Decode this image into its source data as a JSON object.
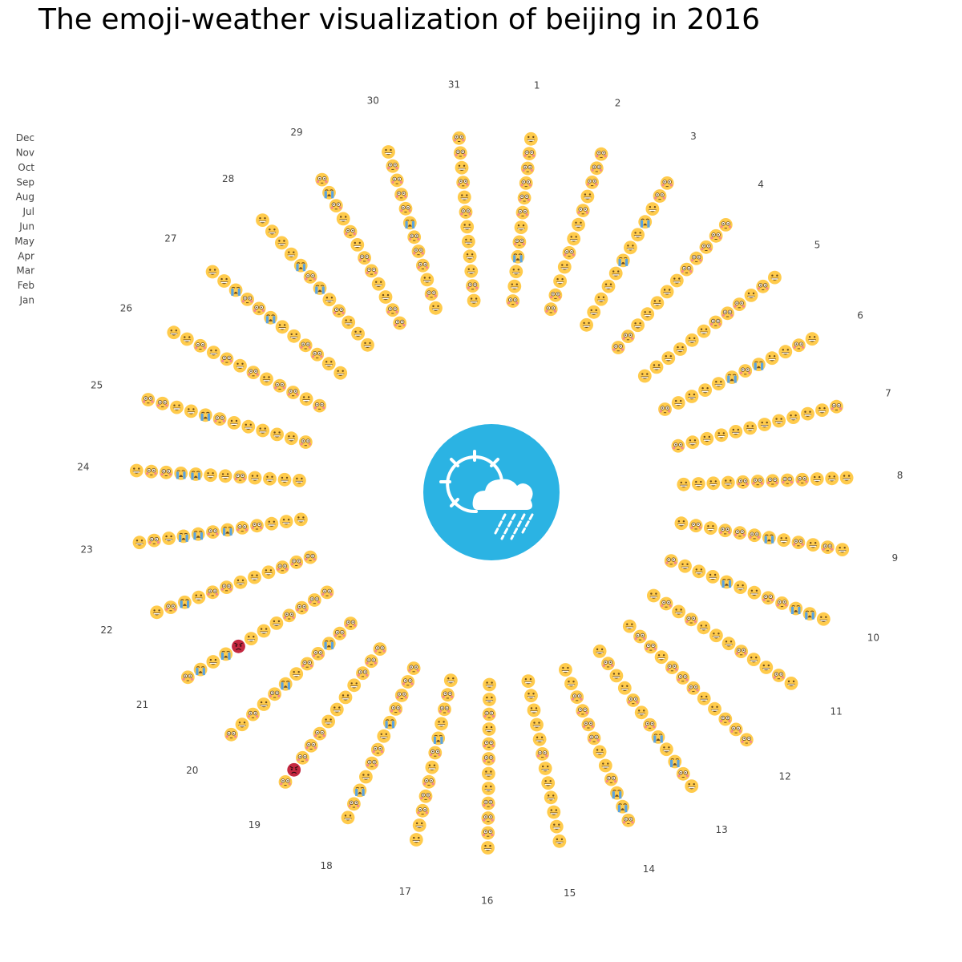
{
  "chart_data": {
    "type": "radial-emoji",
    "title": "The emoji-weather visualization of beijing in 2016",
    "months": [
      "Jan",
      "Feb",
      "Mar",
      "Apr",
      "May",
      "Jun",
      "Jul",
      "Aug",
      "Sep",
      "Oct",
      "Nov",
      "Dec"
    ],
    "days": [
      1,
      2,
      3,
      4,
      5,
      6,
      7,
      8,
      9,
      10,
      11,
      12,
      13,
      14,
      15,
      16,
      17,
      18,
      19,
      20,
      21,
      22,
      23,
      24,
      25,
      26,
      27,
      28,
      29,
      30,
      31
    ],
    "emoji_categories": {
      "grin": "grinning face (good day)",
      "flush": "flushed face",
      "cry": "loudly crying face",
      "angry": "angry face (worst day)"
    },
    "colors": {
      "emoji_face": "#FFCB4C",
      "angry_face": "#C42740",
      "center_badge": "#2BB3E3",
      "text": "#444444"
    },
    "center_icon": "sun-cloud-rain-icon",
    "grid": [
      [
        "flush",
        "flush",
        "grin",
        "flush",
        "grin",
        "flush",
        "flush",
        "grin",
        "grin",
        "flush",
        "grin",
        "grin",
        "grin",
        "grin",
        "grin",
        "grin",
        "grin",
        "flush",
        "flush",
        "flush",
        "flush",
        "flush",
        "grin",
        "grin",
        "flush",
        "flush",
        "grin",
        "grin",
        "flush",
        "grin",
        "grin"
      ],
      [
        "grin",
        "flush",
        "grin",
        "flush",
        "grin",
        "grin",
        "grin",
        "grin",
        "flush",
        "grin",
        "flush",
        "flush",
        "flush",
        "grin",
        "grin",
        "grin",
        "flush",
        "flush",
        "flush",
        "flush",
        "flush",
        "flush",
        "grin",
        "grin",
        "grin",
        "grin",
        "grin",
        "grin",
        "flush",
        "flush",
        "flush"
      ],
      [
        "grin",
        "grin",
        "grin",
        "grin",
        "grin",
        "grin",
        "grin",
        "grin",
        "grin",
        "grin",
        "grin",
        "flush",
        "grin",
        "flush",
        "grin",
        "flush",
        "flush",
        "flush",
        "flush",
        "cry",
        "flush",
        "flush",
        "grin",
        "grin",
        "grin",
        "flush",
        "flush",
        "grin",
        "grin",
        "grin",
        "grin"
      ],
      [
        "cry",
        "grin",
        "grin",
        "grin",
        "grin",
        "grin",
        "grin",
        "grin",
        "flush",
        "grin",
        "flush",
        "grin",
        "grin",
        "flush",
        "grin",
        "grin",
        "grin",
        "flush",
        "grin",
        "flush",
        "flush",
        "grin",
        "flush",
        "grin",
        "grin",
        "flush",
        "flush",
        "flush",
        "grin",
        "flush",
        "grin"
      ],
      [
        "flush",
        "flush",
        "grin",
        "grin",
        "grin",
        "grin",
        "grin",
        "flush",
        "flush",
        "cry",
        "grin",
        "flush",
        "flush",
        "flush",
        "grin",
        "flush",
        "cry",
        "cry",
        "grin",
        "flush",
        "grin",
        "grin",
        "flush",
        "flush",
        "grin",
        "grin",
        "grin",
        "grin",
        "flush",
        "flush",
        "grin"
      ],
      [
        "grin",
        "grin",
        "cry",
        "grin",
        "grin",
        "cry",
        "grin",
        "flush",
        "flush",
        "grin",
        "grin",
        "flush",
        "grin",
        "flush",
        "flush",
        "flush",
        "flush",
        "grin",
        "grin",
        "grin",
        "grin",
        "grin",
        "cry",
        "grin",
        "grin",
        "flush",
        "grin",
        "cry",
        "flush",
        "flush",
        "grin"
      ],
      [
        "flush",
        "grin",
        "grin",
        "grin",
        "flush",
        "flush",
        "grin",
        "flush",
        "cry",
        "grin",
        "grin",
        "flush",
        "flush",
        "grin",
        "grin",
        "grin",
        "grin",
        "flush",
        "grin",
        "cry",
        "grin",
        "flush",
        "flush",
        "grin",
        "flush",
        "grin",
        "cry",
        "flush",
        "grin",
        "cry",
        "flush"
      ],
      [
        "flush",
        "flush",
        "grin",
        "flush",
        "flush",
        "cry",
        "grin",
        "flush",
        "grin",
        "flush",
        "flush",
        "grin",
        "cry",
        "grin",
        "grin",
        "grin",
        "flush",
        "flush",
        "flush",
        "flush",
        "angry",
        "flush",
        "cry",
        "cry",
        "cry",
        "flush",
        "flush",
        "cry",
        "flush",
        "flush",
        "grin"
      ],
      [
        "flush",
        "grin",
        "cry",
        "flush",
        "flush",
        "grin",
        "grin",
        "flush",
        "flush",
        "flush",
        "grin",
        "grin",
        "grin",
        "flush",
        "grin",
        "flush",
        "flush",
        "grin",
        "flush",
        "grin",
        "cry",
        "grin",
        "cry",
        "cry",
        "grin",
        "grin",
        "flush",
        "grin",
        "grin",
        "flush",
        "flush"
      ],
      [
        "flush",
        "flush",
        "grin",
        "flush",
        "grin",
        "grin",
        "grin",
        "grin",
        "grin",
        "cry",
        "grin",
        "flush",
        "cry",
        "cry",
        "grin",
        "flush",
        "flush",
        "cry",
        "flush",
        "flush",
        "grin",
        "cry",
        "grin",
        "flush",
        "grin",
        "flush",
        "cry",
        "grin",
        "flush",
        "flush",
        "grin"
      ],
      [
        "flush",
        "flush",
        "flush",
        "flush",
        "flush",
        "flush",
        "grin",
        "grin",
        "flush",
        "cry",
        "flush",
        "flush",
        "flush",
        "cry",
        "grin",
        "flush",
        "grin",
        "flush",
        "angry",
        "grin",
        "cry",
        "flush",
        "flush",
        "flush",
        "flush",
        "grin",
        "grin",
        "grin",
        "cry",
        "flush",
        "flush"
      ],
      [
        "grin",
        "flush",
        "flush",
        "flush",
        "grin",
        "grin",
        "flush",
        "grin",
        "grin",
        "grin",
        "grin",
        "flush",
        "grin",
        "flush",
        "grin",
        "grin",
        "grin",
        "grin",
        "flush",
        "flush",
        "flush",
        "grin",
        "grin",
        "grin",
        "flush",
        "grin",
        "grin",
        "grin",
        "flush",
        "grin",
        "flush"
      ]
    ]
  }
}
